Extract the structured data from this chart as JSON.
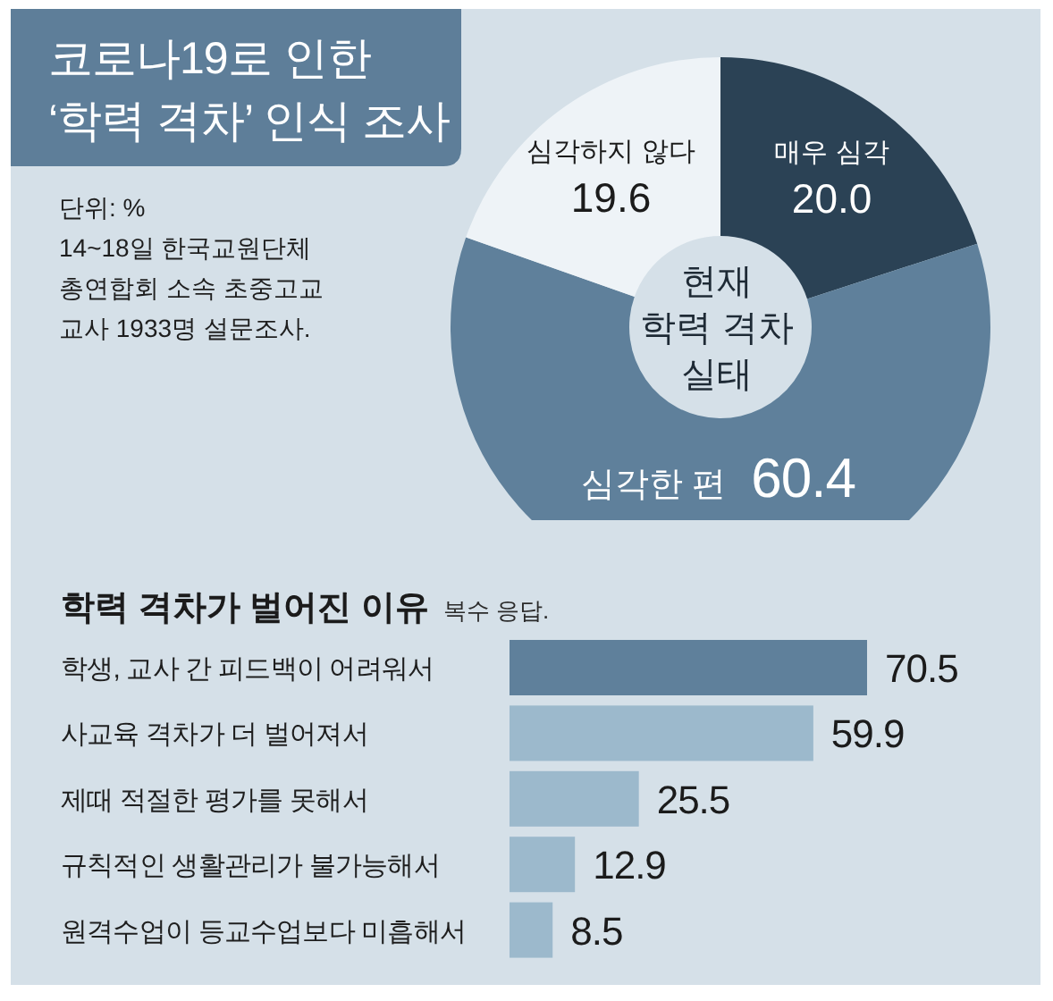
{
  "chart_data": [
    {
      "type": "donut",
      "title": "코로나19로 인한\n‘학력 격차’ 인식 조사",
      "subtitle": "현재\n학력 격차\n실태",
      "annotations": [
        "단위: %",
        "14~18일 한국교원단체\n총연합회 소속 초중고교\n교사 1933명 설문조사."
      ],
      "categories": [
        "매우 심각",
        "심각한 편",
        "심각하지 않다"
      ],
      "values": [
        20.0,
        60.4,
        19.6
      ],
      "colors": [
        "#2b4255",
        "#5f809b",
        "#eef3f7"
      ],
      "value_labels": [
        "20.0",
        "60.4",
        "19.6"
      ]
    },
    {
      "type": "bar",
      "orientation": "horizontal",
      "title": "학력 격차가 벌어진 이유",
      "subtitle": "복수 응답.",
      "categories": [
        "학생, 교사 간 피드백이 어려워서",
        "사교육 격차가 더 벌어져서",
        "제때 적절한 평가를 못해서",
        "규칙적인 생활관리가 불가능해서",
        "원격수업이 등교수업보다 미흡해서"
      ],
      "values": [
        70.5,
        59.9,
        25.5,
        12.9,
        8.5
      ],
      "colors": [
        "#5f809b",
        "#9cb9cc",
        "#9cb9cc",
        "#9cb9cc",
        "#9cb9cc"
      ],
      "data_labels": true
    }
  ]
}
